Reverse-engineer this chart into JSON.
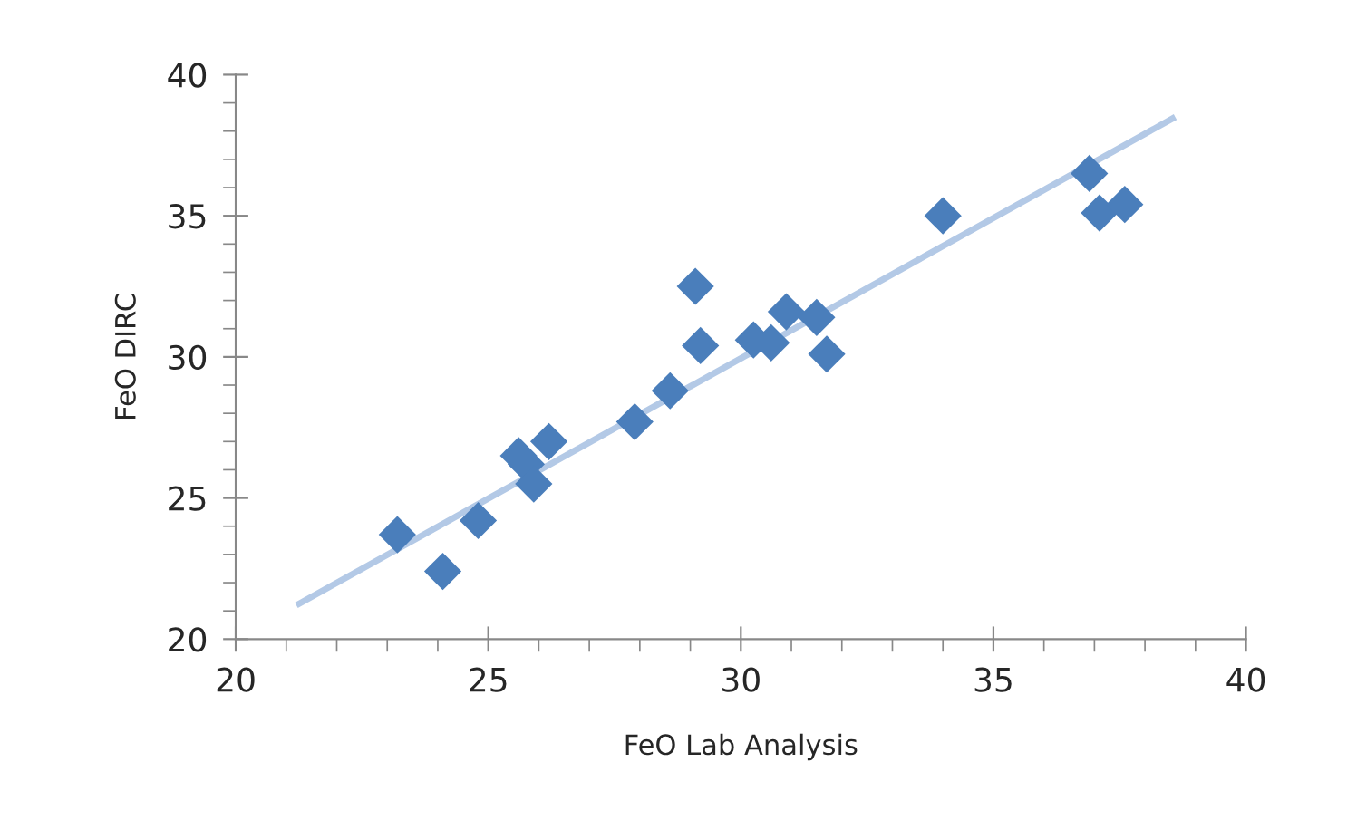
{
  "chart_data": {
    "type": "scatter",
    "xlabel": "FeO Lab Analysis",
    "ylabel": "FeO DIRC",
    "xlim": [
      20,
      40
    ],
    "xticks": [
      20,
      25,
      30,
      35,
      40
    ],
    "ylim": [
      20,
      40
    ],
    "yticks": [
      20,
      25,
      30,
      35,
      40
    ],
    "marker": "diamond",
    "grid": false,
    "legend": false,
    "series": [
      {
        "color": "#4a7ebb",
        "x": [
          23.2,
          24.1,
          24.8,
          25.6,
          25.75,
          25.9,
          26.2,
          27.9,
          28.6,
          29.1,
          29.2,
          30.25,
          30.6,
          30.9,
          31.5,
          31.7,
          34.0,
          36.9,
          37.1,
          37.6
        ],
        "values": [
          23.7,
          22.4,
          24.2,
          26.5,
          26.2,
          25.5,
          27.0,
          27.7,
          28.8,
          32.5,
          30.4,
          30.6,
          30.5,
          31.6,
          31.4,
          30.1,
          35.0,
          36.5,
          35.1,
          35.4
        ]
      },
      {
        "type": "line",
        "color": "#b3c9e6",
        "marker": "none",
        "x": [
          21.2,
          38.6
        ],
        "values": [
          21.2,
          38.5
        ]
      }
    ]
  }
}
